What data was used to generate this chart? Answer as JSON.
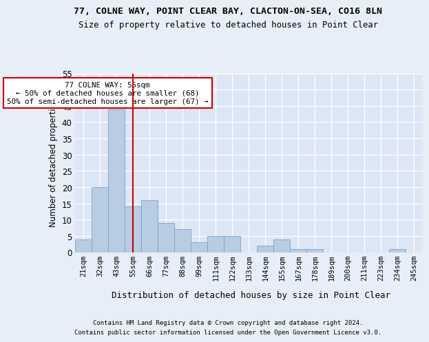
{
  "title1": "77, COLNE WAY, POINT CLEAR BAY, CLACTON-ON-SEA, CO16 8LN",
  "title2": "Size of property relative to detached houses in Point Clear",
  "xlabel": "Distribution of detached houses by size in Point Clear",
  "ylabel": "Number of detached properties",
  "categories": [
    "21sqm",
    "32sqm",
    "43sqm",
    "55sqm",
    "66sqm",
    "77sqm",
    "88sqm",
    "99sqm",
    "111sqm",
    "122sqm",
    "133sqm",
    "144sqm",
    "155sqm",
    "167sqm",
    "178sqm",
    "189sqm",
    "200sqm",
    "211sqm",
    "223sqm",
    "234sqm",
    "245sqm"
  ],
  "values": [
    4,
    20,
    44,
    14,
    16,
    9,
    7,
    3,
    5,
    5,
    0,
    2,
    4,
    1,
    1,
    0,
    0,
    0,
    0,
    1,
    0
  ],
  "bar_color": "#b8cce4",
  "bar_edge_color": "#7aa3cc",
  "vline_x": 3,
  "vline_color": "#cc0000",
  "annotation_text": "77 COLNE WAY: 55sqm\n← 50% of detached houses are smaller (68)\n50% of semi-detached houses are larger (67) →",
  "annotation_box_color": "#cc0000",
  "ylim": [
    0,
    55
  ],
  "yticks": [
    0,
    5,
    10,
    15,
    20,
    25,
    30,
    35,
    40,
    45,
    50,
    55
  ],
  "footer1": "Contains HM Land Registry data © Crown copyright and database right 2024.",
  "footer2": "Contains public sector information licensed under the Open Government Licence v3.0.",
  "bg_color": "#dce6f5",
  "fig_bg_color": "#e8eef8",
  "grid_color": "#ffffff"
}
